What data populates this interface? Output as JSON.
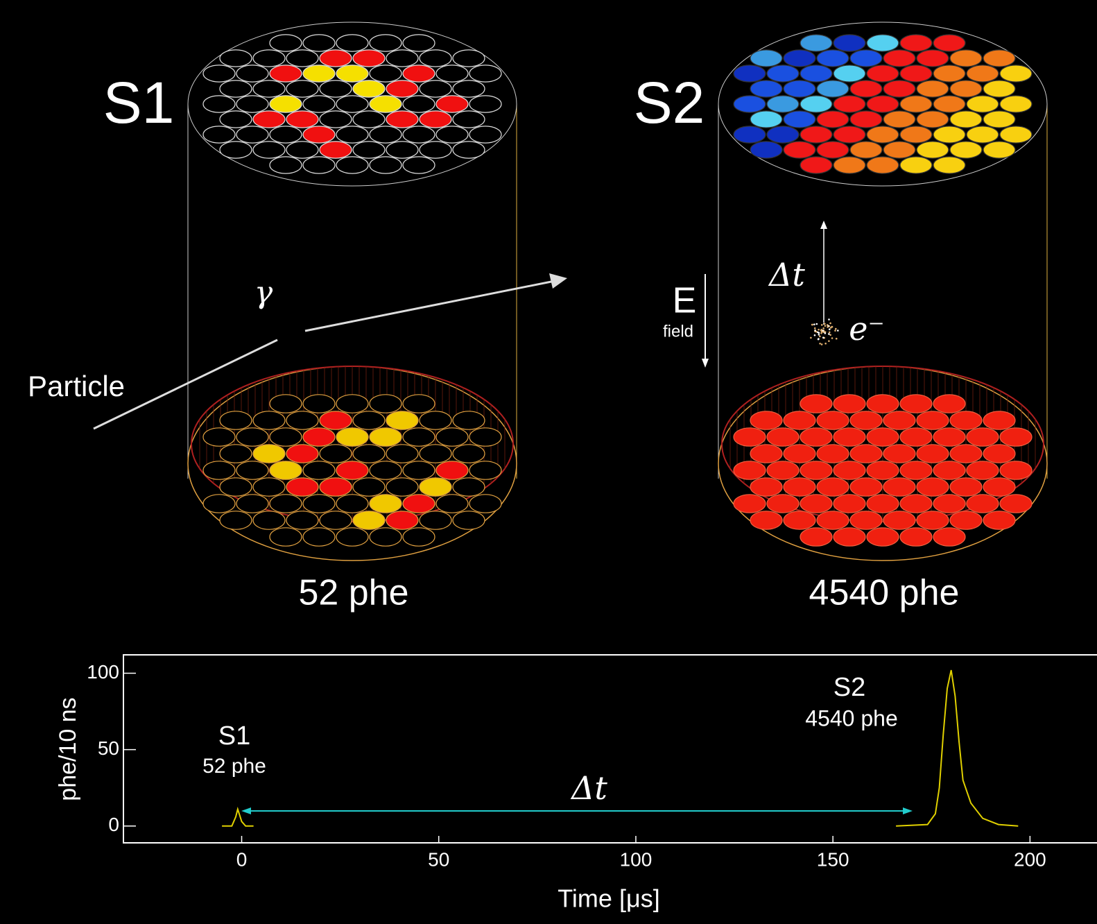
{
  "diagram": {
    "panels": [
      {
        "label": "S1",
        "count": "52 phe"
      },
      {
        "label": "S2",
        "count": "4540 phe"
      }
    ],
    "particle": "Particle",
    "gamma": "γ",
    "delta_t": "Δt",
    "e_field": "E",
    "field_sub": "field",
    "electron": "e⁻"
  },
  "chart_data": {
    "type": "line",
    "x_label": "Time [μs]",
    "y_label": "phe/10 ns",
    "xlim": [
      -30,
      217
    ],
    "ylim": [
      -11,
      112
    ],
    "xticks": [
      0,
      50,
      100,
      150,
      200
    ],
    "yticks": [
      0,
      50,
      100
    ],
    "x": [
      -5,
      -2.5,
      -1.5,
      -1,
      -0.5,
      0,
      1,
      3,
      90,
      166,
      174,
      176,
      177,
      178,
      179,
      180,
      181,
      182,
      183,
      185,
      188,
      192,
      197
    ],
    "series": [
      {
        "color": "#e0d000",
        "values": [
          0,
          0,
          6,
          11,
          7,
          3,
          0,
          0,
          null,
          0,
          1,
          8,
          25,
          60,
          90,
          102,
          85,
          55,
          30,
          15,
          5,
          1,
          0
        ]
      }
    ],
    "peak_labels": [
      {
        "name": "S1",
        "count": "52 phe"
      },
      {
        "name": "S2",
        "count": "4540 phe"
      }
    ],
    "interval_label": "Δt"
  }
}
